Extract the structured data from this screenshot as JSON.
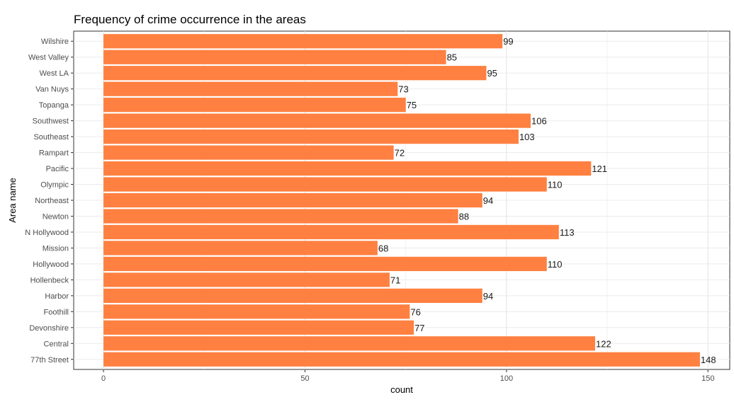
{
  "chart_data": {
    "type": "bar",
    "orientation": "horizontal",
    "title": "Frequency of crime occurrence in the areas",
    "xlabel": "count",
    "ylabel": "Area name",
    "xlim": [
      -7.4,
      155.4
    ],
    "x_ticks": [
      0,
      50,
      100,
      150
    ],
    "grid": true,
    "legend": "none",
    "bar_color": "#FF8040",
    "categories": [
      "77th Street",
      "Central",
      "Devonshire",
      "Foothill",
      "Harbor",
      "Hollenbeck",
      "Hollywood",
      "Mission",
      "N Hollywood",
      "Newton",
      "Northeast",
      "Olympic",
      "Pacific",
      "Rampart",
      "Southeast",
      "Southwest",
      "Topanga",
      "Van Nuys",
      "West LA",
      "West Valley",
      "Wilshire"
    ],
    "values": [
      148,
      122,
      77,
      76,
      94,
      71,
      110,
      68,
      113,
      88,
      94,
      110,
      121,
      72,
      103,
      106,
      75,
      73,
      95,
      85,
      99
    ],
    "data_labels": [
      "148",
      "122",
      "77",
      "76",
      "94",
      "71",
      "110",
      "68",
      "113",
      "88",
      "94",
      "110",
      "121",
      "72",
      "103",
      "106",
      "75",
      "73",
      "95",
      "85",
      "99"
    ]
  }
}
